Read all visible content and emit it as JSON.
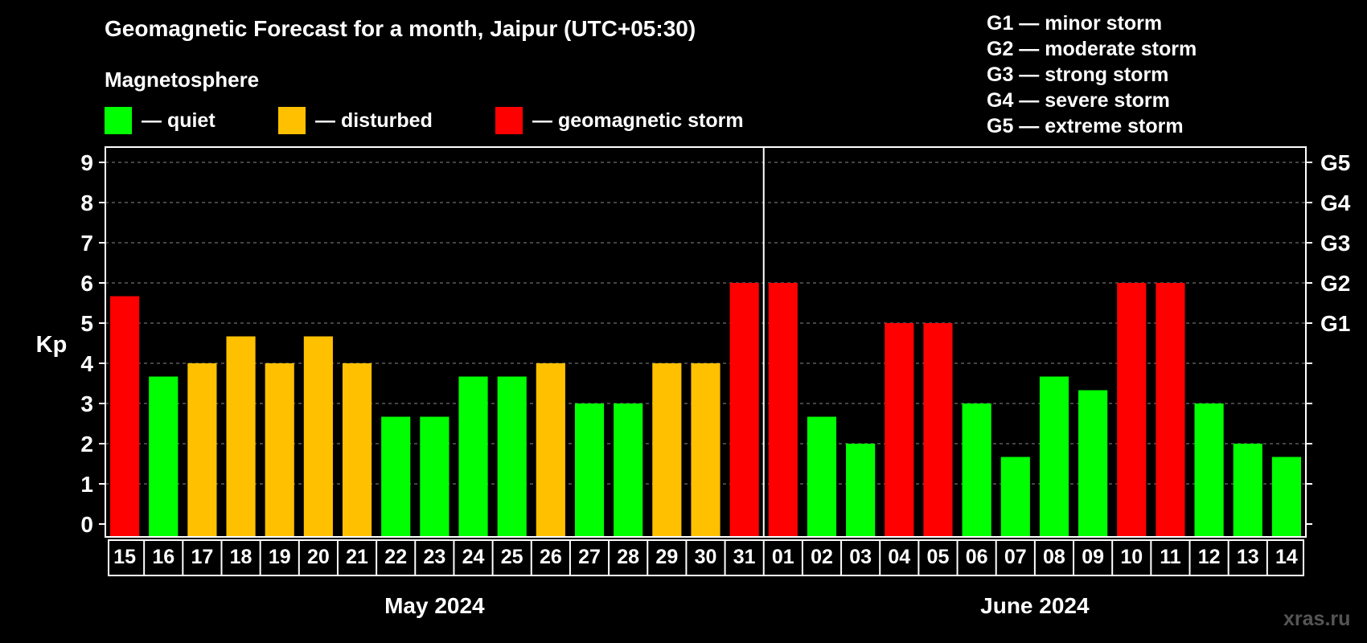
{
  "title": "Geomagnetic Forecast for a month, Jaipur (UTC+05:30)",
  "subtitle": "Magnetosphere",
  "legend": [
    {
      "label": "— quiet",
      "color": "#00ff00"
    },
    {
      "label": "— disturbed",
      "color": "#ffc000"
    },
    {
      "label": "— geomagnetic storm",
      "color": "#ff0000"
    }
  ],
  "g_scale": [
    "G1 — minor storm",
    "G2 — moderate storm",
    "G3 — strong storm",
    "G4 — severe storm",
    "G5 — extreme storm"
  ],
  "watermark": "xras.ru",
  "chart_data": {
    "type": "bar",
    "ylabel": "Kp",
    "ylim": [
      0,
      9
    ],
    "yticks": [
      "0",
      "1",
      "2",
      "3",
      "4",
      "5",
      "6",
      "7",
      "8",
      "9"
    ],
    "right_axis_labels": [
      {
        "kp": 5,
        "label": "G1"
      },
      {
        "kp": 6,
        "label": "G2"
      },
      {
        "kp": 7,
        "label": "G3"
      },
      {
        "kp": 8,
        "label": "G4"
      },
      {
        "kp": 9,
        "label": "G5"
      }
    ],
    "grid": "dashed horizontal",
    "months": [
      {
        "label": "May 2024",
        "days": 17
      },
      {
        "label": "June 2024",
        "days": 14
      }
    ],
    "categories": [
      "15",
      "16",
      "17",
      "18",
      "19",
      "20",
      "21",
      "22",
      "23",
      "24",
      "25",
      "26",
      "27",
      "28",
      "29",
      "30",
      "31",
      "01",
      "02",
      "03",
      "04",
      "05",
      "06",
      "07",
      "08",
      "09",
      "10",
      "11",
      "12",
      "13",
      "14"
    ],
    "values": [
      5.67,
      3.67,
      4,
      4.67,
      4,
      4.67,
      4,
      2.67,
      2.67,
      3.67,
      3.67,
      4,
      3,
      3,
      4,
      4,
      6,
      6,
      2.67,
      2,
      5,
      5,
      3,
      1.67,
      3.67,
      3.33,
      6,
      6,
      3,
      2,
      1.67
    ],
    "status": [
      "storm",
      "quiet",
      "disturbed",
      "disturbed",
      "disturbed",
      "disturbed",
      "disturbed",
      "quiet",
      "quiet",
      "quiet",
      "quiet",
      "disturbed",
      "quiet",
      "quiet",
      "disturbed",
      "disturbed",
      "storm",
      "storm",
      "quiet",
      "quiet",
      "storm",
      "storm",
      "quiet",
      "quiet",
      "quiet",
      "quiet",
      "storm",
      "storm",
      "quiet",
      "quiet",
      "quiet"
    ],
    "colors": {
      "quiet": "#00ff00",
      "disturbed": "#ffc000",
      "storm": "#ff0000"
    }
  }
}
